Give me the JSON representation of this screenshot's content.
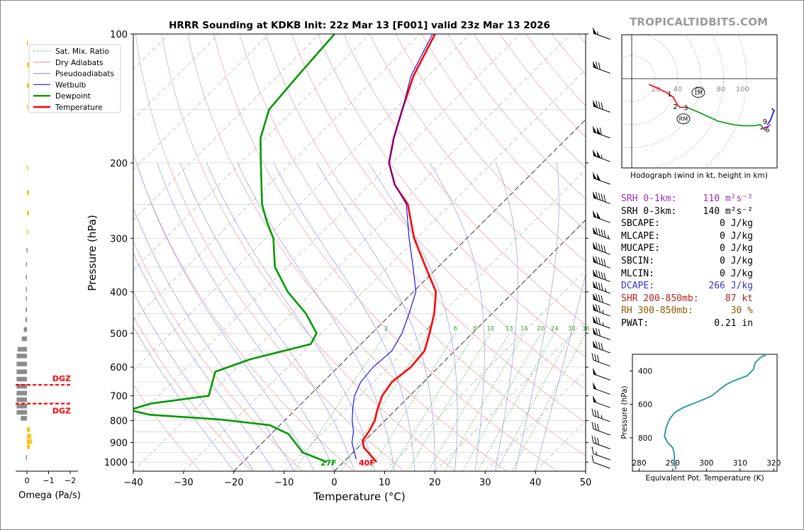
{
  "brand": "TROPICALTIDBITS.COM",
  "chart_data": [
    {
      "type": "line",
      "title": "HRRR Sounding at KDKB Init: 22z Mar 13 [F001] valid 23z Mar 13 2026",
      "xlabel": "Temperature (°C)",
      "ylabel": "Pressure (hPa)",
      "xlim": [
        -40,
        50
      ],
      "ylim": [
        1050,
        100
      ],
      "y_scale": "log",
      "x_ticks": [
        -40,
        -30,
        -20,
        -10,
        0,
        10,
        20,
        30,
        40,
        50
      ],
      "x_tick_labels": [
        "−40",
        "−30",
        "−20",
        "−10",
        "0",
        "10",
        "20",
        "30",
        "40",
        "50"
      ],
      "y_ticks": [
        100,
        200,
        300,
        400,
        500,
        600,
        700,
        800,
        900,
        1000
      ],
      "skew": true,
      "grid": true,
      "legend": {
        "placement": "top-left",
        "entries": [
          {
            "label": "Sat. Mix. Ratio",
            "color": "#2a9d2a",
            "style": "dotted"
          },
          {
            "label": "Dry Adiabats",
            "color": "#d98b8b",
            "style": "solid"
          },
          {
            "label": "Pseudoadiabats",
            "color": "#8a8ad8",
            "style": "solid"
          },
          {
            "label": "Wetbulb",
            "color": "#0000ff",
            "style": "solid"
          },
          {
            "label": "Dewpoint",
            "color": "#009900",
            "style": "solid-thick"
          },
          {
            "label": "Temperature",
            "color": "#ff0000",
            "style": "solid-thick"
          }
        ]
      },
      "mixing_ratio_labels": [
        "2",
        "4",
        "6",
        "8",
        "10",
        "13",
        "16",
        "20",
        "24",
        "30",
        "36"
      ],
      "mixing_ratio_values": [
        2,
        4,
        6,
        8,
        10,
        13,
        16,
        20,
        24,
        30,
        36
      ],
      "surface_labels": {
        "dewpoint": "27F",
        "temperature": "40F"
      },
      "series": [
        {
          "name": "Temperature",
          "color": "#ff0000",
          "points": [
            [
              1000,
              6.6
            ],
            [
              970,
              4.5
            ],
            [
              925,
              1.2
            ],
            [
              890,
              -0.5
            ],
            [
              850,
              -1.0
            ],
            [
              800,
              -2.0
            ],
            [
              760,
              -3.5
            ],
            [
              700,
              -5.5
            ],
            [
              650,
              -6.3
            ],
            [
              600,
              -5.5
            ],
            [
              550,
              -6.0
            ],
            [
              500,
              -8.5
            ],
            [
              450,
              -11.5
            ],
            [
              400,
              -15.5
            ],
            [
              350,
              -22.5
            ],
            [
              300,
              -30.5
            ],
            [
              250,
              -38.5
            ],
            [
              225,
              -45.0
            ],
            [
              200,
              -50.5
            ],
            [
              175,
              -54.5
            ],
            [
              150,
              -58.5
            ],
            [
              125,
              -63.0
            ],
            [
              100,
              -67.0
            ]
          ]
        },
        {
          "name": "Wetbulb",
          "color": "#0000ff",
          "points": [
            [
              985,
              2.0
            ],
            [
              950,
              0.3
            ],
            [
              900,
              -2.2
            ],
            [
              850,
              -4.0
            ],
            [
              800,
              -6.5
            ],
            [
              750,
              -8.8
            ],
            [
              700,
              -11.0
            ],
            [
              650,
              -12.5
            ],
            [
              600,
              -13.0
            ],
            [
              550,
              -12.5
            ],
            [
              500,
              -14.0
            ],
            [
              450,
              -16.5
            ],
            [
              400,
              -19.5
            ],
            [
              350,
              -25.0
            ],
            [
              300,
              -31.5
            ],
            [
              250,
              -38.8
            ],
            [
              225,
              -45.0
            ],
            [
              200,
              -50.5
            ],
            [
              175,
              -54.5
            ],
            [
              150,
              -58.5
            ],
            [
              125,
              -63.5
            ],
            [
              100,
              -67.5
            ]
          ]
        },
        {
          "name": "Dewpoint",
          "color": "#009900",
          "points": [
            [
              1000,
              -3.3
            ],
            [
              975,
              -6.5
            ],
            [
              950,
              -10.0
            ],
            [
              900,
              -13.5
            ],
            [
              860,
              -16.5
            ],
            [
              820,
              -22.0
            ],
            [
              795,
              -33.0
            ],
            [
              775,
              -48.0
            ],
            [
              755,
              -53.0
            ],
            [
              730,
              -50.0
            ],
            [
              700,
              -40.0
            ],
            [
              650,
              -42.0
            ],
            [
              615,
              -43.5
            ],
            [
              575,
              -39.0
            ],
            [
              530,
              -30.0
            ],
            [
              500,
              -31.0
            ],
            [
              450,
              -37.0
            ],
            [
              400,
              -45.0
            ],
            [
              350,
              -52.5
            ],
            [
              300,
              -58.5
            ],
            [
              275,
              -63.0
            ],
            [
              250,
              -67.5
            ],
            [
              200,
              -76.0
            ],
            [
              175,
              -81.0
            ],
            [
              150,
              -85.0
            ],
            [
              125,
              -86.0
            ],
            [
              100,
              -87.0
            ]
          ]
        }
      ]
    },
    {
      "type": "bar",
      "xlabel": "Omega (Pa/s)",
      "x_ticks": [
        0,
        -1,
        -2
      ],
      "x_tick_labels": [
        "0",
        "−1",
        "−2"
      ],
      "dgz_label": "DGZ",
      "dgz_levels": [
        660,
        730
      ],
      "bars": [
        {
          "p": 105,
          "v": 0.05
        },
        {
          "p": 118,
          "v": 0.2
        },
        {
          "p": 132,
          "v": 0.2
        },
        {
          "p": 148,
          "v": 0.06
        },
        {
          "p": 205,
          "v": 0.06
        },
        {
          "p": 235,
          "v": 0.2
        },
        {
          "p": 262,
          "v": 0.2
        },
        {
          "p": 290,
          "v": 0.05
        },
        {
          "p": 320,
          "v": -0.05
        },
        {
          "p": 345,
          "v": -0.1
        },
        {
          "p": 370,
          "v": -0.1
        },
        {
          "p": 395,
          "v": -0.1
        },
        {
          "p": 415,
          "v": -0.1
        },
        {
          "p": 440,
          "v": -0.12
        },
        {
          "p": 465,
          "v": -0.15
        },
        {
          "p": 490,
          "v": -0.3
        },
        {
          "p": 515,
          "v": -0.5
        },
        {
          "p": 545,
          "v": -0.9
        },
        {
          "p": 565,
          "v": -1.0
        },
        {
          "p": 590,
          "v": -1.0
        },
        {
          "p": 615,
          "v": -1.0
        },
        {
          "p": 640,
          "v": -1.0
        },
        {
          "p": 665,
          "v": -1.0
        },
        {
          "p": 690,
          "v": -1.0
        },
        {
          "p": 715,
          "v": -1.0
        },
        {
          "p": 740,
          "v": -1.0
        },
        {
          "p": 765,
          "v": -1.0
        },
        {
          "p": 790,
          "v": -0.6
        },
        {
          "p": 840,
          "v": 0.3
        },
        {
          "p": 870,
          "v": 0.4
        },
        {
          "p": 895,
          "v": 0.5
        },
        {
          "p": 920,
          "v": 0.3
        },
        {
          "p": 975,
          "v": -0.1
        }
      ]
    },
    {
      "type": "line",
      "xlabel": "Hodograph (wind in kt, height in km)",
      "ring_labels": [
        "20",
        "40",
        "60",
        "80",
        "100"
      ],
      "ring_values": [
        20,
        40,
        60,
        80,
        100
      ],
      "height_labels": [
        {
          "t": "1",
          "u": 33,
          "v": -13
        },
        {
          "t": "2",
          "u": 38,
          "v": -24
        },
        {
          "t": "3",
          "u": 47,
          "v": -25
        },
        {
          "t": "6",
          "u": 118,
          "v": -44
        },
        {
          "t": "9",
          "u": 116,
          "v": -37
        }
      ],
      "markers": [
        {
          "t": "1M",
          "u": 58,
          "v": -12
        },
        {
          "t": "RM",
          "u": 45,
          "v": -35
        }
      ],
      "segments": [
        {
          "color": "#ff0000",
          "points": [
            [
              15,
              -5
            ],
            [
              22,
              -8
            ],
            [
              30,
              -12
            ],
            [
              36,
              -16
            ],
            [
              40,
              -23
            ],
            [
              42,
              -25
            ],
            [
              48,
              -25
            ]
          ]
        },
        {
          "color": "#009900",
          "points": [
            [
              48,
              -25
            ],
            [
              60,
              -30
            ],
            [
              75,
              -37
            ],
            [
              88,
              -40
            ],
            [
              96,
              -41
            ],
            [
              107,
              -41
            ],
            [
              112,
              -40
            ],
            [
              116,
              -45
            ]
          ]
        },
        {
          "color": "#aa00cc",
          "points": [
            [
              112,
              -44
            ],
            [
              118,
              -42
            ],
            [
              121,
              -40
            ]
          ]
        },
        {
          "color": "#0000ff",
          "points": [
            [
              118,
              -40
            ],
            [
              121,
              -36
            ],
            [
              123,
              -30
            ],
            [
              124,
              -28
            ],
            [
              122,
              -26
            ]
          ]
        }
      ]
    },
    {
      "type": "line",
      "xlabel": "Equivalent Pot. Temperature (K)",
      "ylabel": "Pressure (hPa)",
      "x_ticks": [
        280,
        290,
        300,
        310,
        320
      ],
      "y_ticks": [
        400,
        600,
        800
      ],
      "xlim": [
        278,
        321
      ],
      "ylim": [
        1000,
        300
      ],
      "series": [
        {
          "name": "θe",
          "color": "#3399aa",
          "points": [
            [
              318.0,
              300
            ],
            [
              316.0,
              320
            ],
            [
              314.5,
              350
            ],
            [
              314.0,
              390
            ],
            [
              312.0,
              430
            ],
            [
              308.0,
              460
            ],
            [
              306.0,
              480
            ],
            [
              304.0,
              510
            ],
            [
              301.5,
              550
            ],
            [
              298.0,
              580
            ],
            [
              293.0,
              620
            ],
            [
              290.5,
              650
            ],
            [
              289.0,
              690
            ],
            [
              288.0,
              740
            ],
            [
              287.5,
              790
            ],
            [
              288.5,
              830
            ],
            [
              290.0,
              860
            ],
            [
              290.5,
              900
            ],
            [
              290.5,
              950
            ],
            [
              291.0,
              990
            ]
          ]
        }
      ]
    }
  ],
  "indices": [
    {
      "label": "SRH 0-1km:",
      "value": "110",
      "unit": "m²s⁻²",
      "color": "#9b30b0"
    },
    {
      "label": "SRH 0-3km:",
      "value": "140",
      "unit": "m²s⁻²",
      "color": "#000000"
    },
    {
      "label": "SBCAPE:",
      "value": "0 J/kg",
      "unit": "",
      "color": "#000000"
    },
    {
      "label": "MLCAPE:",
      "value": "0 J/kg",
      "unit": "",
      "color": "#000000"
    },
    {
      "label": "MUCAPE:",
      "value": "0 J/kg",
      "unit": "",
      "color": "#000000"
    },
    {
      "label": "SBCIN:",
      "value": "0 J/kg",
      "unit": "",
      "color": "#000000"
    },
    {
      "label": "MLCIN:",
      "value": "0 J/kg",
      "unit": "",
      "color": "#000000"
    },
    {
      "label": "DCAPE:",
      "value": "266 J/kg",
      "unit": "",
      "color": "#3333cc"
    },
    {
      "label": "SHR 200-850mb:",
      "value": "87 kt",
      "unit": "",
      "color": "#b22222"
    },
    {
      "label": "RH 300-850mb:",
      "value": "30 %",
      "unit": "",
      "color": "#8b5a00"
    },
    {
      "label": "PWAT:",
      "value": "0.21 in",
      "unit": "",
      "color": "#000000"
    }
  ],
  "wind_barbs": [
    {
      "p": 100,
      "speed": 55
    },
    {
      "p": 120,
      "speed": 70
    },
    {
      "p": 148,
      "speed": 80
    },
    {
      "p": 170,
      "speed": 110
    },
    {
      "p": 193,
      "speed": 105
    },
    {
      "p": 218,
      "speed": 100
    },
    {
      "p": 242,
      "speed": 90
    },
    {
      "p": 268,
      "speed": 100
    },
    {
      "p": 293,
      "speed": 95
    },
    {
      "p": 318,
      "speed": 90
    },
    {
      "p": 342,
      "speed": 90
    },
    {
      "p": 368,
      "speed": 90
    },
    {
      "p": 392,
      "speed": 85
    },
    {
      "p": 418,
      "speed": 80
    },
    {
      "p": 443,
      "speed": 75
    },
    {
      "p": 473,
      "speed": 75
    },
    {
      "p": 503,
      "speed": 70
    },
    {
      "p": 540,
      "speed": 80
    },
    {
      "p": 580,
      "speed": 30
    },
    {
      "p": 625,
      "speed": 50
    },
    {
      "p": 675,
      "speed": 50
    },
    {
      "p": 725,
      "speed": 50
    },
    {
      "p": 782,
      "speed": 35
    },
    {
      "p": 840,
      "speed": 30
    },
    {
      "p": 905,
      "speed": 30
    },
    {
      "p": 960,
      "speed": 15
    },
    {
      "p": 1005,
      "speed": 10
    }
  ]
}
